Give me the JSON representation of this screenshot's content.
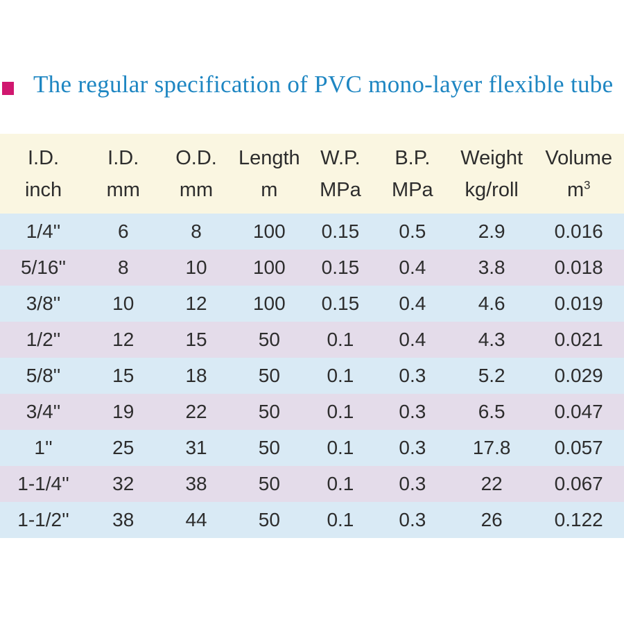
{
  "title": {
    "text": "The regular specification of PVC mono-layer flexible tube",
    "text_color": "#1e86c2",
    "bullet_color": "#d0176f"
  },
  "table": {
    "columns": [
      {
        "line1": "I.D.",
        "line2": "inch"
      },
      {
        "line1": "I.D.",
        "line2": "mm"
      },
      {
        "line1": "O.D.",
        "line2": "mm"
      },
      {
        "line1": "Length",
        "line2": "m"
      },
      {
        "line1": "W.P.",
        "line2": "MPa"
      },
      {
        "line1": "B.P.",
        "line2": "MPa"
      },
      {
        "line1": "Weight",
        "line2": "kg/roll"
      },
      {
        "line1": "Volume",
        "line2": "m",
        "line2_sup": "3"
      }
    ],
    "rows": [
      [
        "1/4''",
        "6",
        "8",
        "100",
        "0.15",
        "0.5",
        "2.9",
        "0.016"
      ],
      [
        "5/16''",
        "8",
        "10",
        "100",
        "0.15",
        "0.4",
        "3.8",
        "0.018"
      ],
      [
        "3/8''",
        "10",
        "12",
        "100",
        "0.15",
        "0.4",
        "4.6",
        "0.019"
      ],
      [
        "1/2''",
        "12",
        "15",
        "50",
        "0.1",
        "0.4",
        "4.3",
        "0.021"
      ],
      [
        "5/8''",
        "15",
        "18",
        "50",
        "0.1",
        "0.3",
        "5.2",
        "0.029"
      ],
      [
        "3/4''",
        "19",
        "22",
        "50",
        "0.1",
        "0.3",
        "6.5",
        "0.047"
      ],
      [
        "1''",
        "25",
        "31",
        "50",
        "0.1",
        "0.3",
        "17.8",
        "0.057"
      ],
      [
        "1-1/4''",
        "32",
        "38",
        "50",
        "0.1",
        "0.3",
        "22",
        "0.067"
      ],
      [
        "1-1/2''",
        "38",
        "44",
        "50",
        "0.1",
        "0.3",
        "26",
        "0.122"
      ]
    ],
    "colors": {
      "header_bg": "#faf6e1",
      "row_even_bg": "#d9eaf5",
      "row_odd_bg": "#e4dcea",
      "text": "#2d2d2d"
    }
  }
}
